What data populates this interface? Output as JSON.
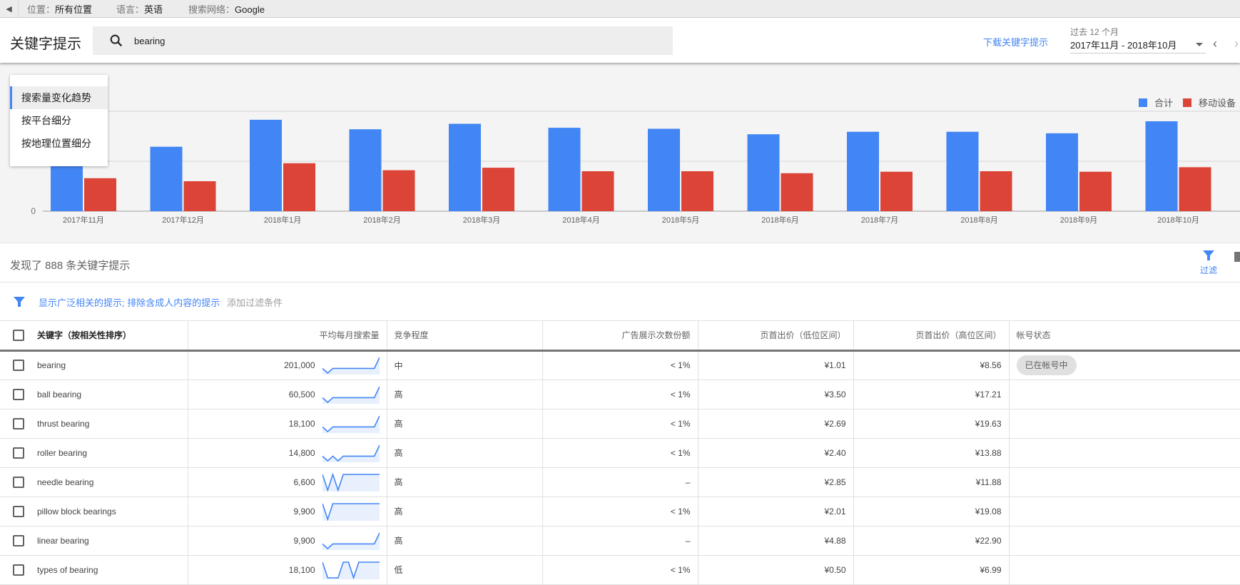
{
  "topbar": {
    "location_label": "位置：",
    "location_value": "所有位置",
    "language_label": "语言：",
    "language_value": "英语",
    "network_label": "搜索网络：",
    "network_value": "Google"
  },
  "header": {
    "title": "关键字提示",
    "search_value": "bearing",
    "download_label": "下载关键字提示",
    "date_caption": "过去 12 个月",
    "date_range": "2017年11月 - 2018年10月"
  },
  "chart_menu": {
    "items": [
      {
        "label": "搜索量变化趋势",
        "active": true
      },
      {
        "label": "按平台细分",
        "active": false
      },
      {
        "label": "按地理位置细分",
        "active": false
      }
    ]
  },
  "chart_data": {
    "type": "bar",
    "categories": [
      "2017年11月",
      "2017年12月",
      "2018年1月",
      "2018年2月",
      "2018年3月",
      "2018年4月",
      "2018年5月",
      "2018年6月",
      "2018年7月",
      "2018年8月",
      "2018年9月",
      "2018年10月"
    ],
    "series": [
      {
        "name": "合计",
        "color": "#4285f4",
        "values": [
          1.5,
          1.29,
          1.83,
          1.64,
          1.75,
          1.67,
          1.65,
          1.54,
          1.59,
          1.59,
          1.56,
          1.8
        ]
      },
      {
        "name": "移动设备",
        "color": "#db4437",
        "values": [
          0.66,
          0.6,
          0.96,
          0.82,
          0.87,
          0.8,
          0.8,
          0.76,
          0.79,
          0.8,
          0.79,
          0.88
        ]
      }
    ],
    "y_tick_labels": [
      "0"
    ],
    "ylim": [
      0,
      2
    ],
    "grid": true,
    "legend": "top-right"
  },
  "results": {
    "count_text": "发现了 888 条关键字提示",
    "filter_label": "过滤"
  },
  "filters": {
    "active": "显示广泛相关的提示; 排除含成人内容的提示",
    "add": "添加过滤条件"
  },
  "table": {
    "headers": [
      "关键字（按相关性排序）",
      "平均每月搜索量",
      "竞争程度",
      "广告展示次数份额",
      "页首出价（低位区间）",
      "页首出价（高位区间）",
      "帐号状态"
    ],
    "rows": [
      {
        "keyword": "bearing",
        "volume": "201,000",
        "trend": [
          0.3,
          0,
          0.3,
          0.3,
          0.3,
          0.3,
          0.3,
          0.3,
          0.3,
          0.3,
          0.3,
          1
        ],
        "competition": "中",
        "share": "< 1%",
        "low": "¥1.01",
        "high": "¥8.56",
        "status": "已在帐号中"
      },
      {
        "keyword": "ball bearing",
        "volume": "60,500",
        "trend": [
          0.3,
          0,
          0.3,
          0.3,
          0.3,
          0.3,
          0.3,
          0.3,
          0.3,
          0.3,
          0.3,
          1
        ],
        "competition": "高",
        "share": "< 1%",
        "low": "¥3.50",
        "high": "¥17.21",
        "status": ""
      },
      {
        "keyword": "thrust bearing",
        "volume": "18,100",
        "trend": [
          0.3,
          0,
          0.3,
          0.3,
          0.3,
          0.3,
          0.3,
          0.3,
          0.3,
          0.3,
          0.3,
          1
        ],
        "competition": "高",
        "share": "< 1%",
        "low": "¥2.69",
        "high": "¥19.63",
        "status": ""
      },
      {
        "keyword": "roller bearing",
        "volume": "14,800",
        "trend": [
          0.3,
          0,
          0.3,
          0,
          0.3,
          0.3,
          0.3,
          0.3,
          0.3,
          0.3,
          0.3,
          1
        ],
        "competition": "高",
        "share": "< 1%",
        "low": "¥2.40",
        "high": "¥13.88",
        "status": ""
      },
      {
        "keyword": "needle bearing",
        "volume": "6,600",
        "trend": [
          1,
          0,
          1,
          0,
          1,
          1,
          1,
          1,
          1,
          1,
          1,
          1
        ],
        "competition": "高",
        "share": "–",
        "low": "¥2.85",
        "high": "¥11.88",
        "status": ""
      },
      {
        "keyword": "pillow block bearings",
        "volume": "9,900",
        "trend": [
          1,
          0,
          1,
          1,
          1,
          1,
          1,
          1,
          1,
          1,
          1,
          1
        ],
        "competition": "高",
        "share": "< 1%",
        "low": "¥2.01",
        "high": "¥19.08",
        "status": ""
      },
      {
        "keyword": "linear bearing",
        "volume": "9,900",
        "trend": [
          0.3,
          0,
          0.3,
          0.3,
          0.3,
          0.3,
          0.3,
          0.3,
          0.3,
          0.3,
          0.3,
          1
        ],
        "competition": "高",
        "share": "–",
        "low": "¥4.88",
        "high": "¥22.90",
        "status": ""
      },
      {
        "keyword": "types of bearing",
        "volume": "18,100",
        "trend": [
          1,
          0,
          0,
          0,
          1,
          1,
          0,
          1,
          1,
          1,
          1,
          1
        ],
        "competition": "低",
        "share": "< 1%",
        "low": "¥0.50",
        "high": "¥6.99",
        "status": ""
      }
    ]
  },
  "colors": {
    "accent": "#4285f4",
    "total": "#4285f4",
    "mobile": "#db4437"
  }
}
